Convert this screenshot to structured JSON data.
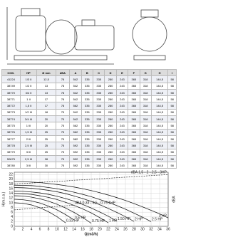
{
  "table": {
    "header": [
      "COD.",
      "HP",
      "Ø mm",
      "dBA",
      "A",
      "B",
      "C",
      "D",
      "E",
      "F",
      "G",
      "H",
      "I"
    ],
    "rows": [
      [
        "41224",
        "1/3 II",
        "12,5",
        "78",
        "542",
        "335",
        "335",
        "280",
        "243",
        "365",
        "318",
        "144,5",
        "58"
      ],
      [
        "38749",
        "1/2 II",
        "13",
        "78",
        "542",
        "335",
        "335",
        "280",
        "243",
        "365",
        "318",
        "144,5",
        "58"
      ],
      [
        "38770",
        "3/4 II",
        "13",
        "78",
        "542",
        "335",
        "335",
        "280",
        "243",
        "365",
        "318",
        "144,5",
        "58"
      ],
      [
        "38771",
        "1 II",
        "17",
        "78",
        "542",
        "335",
        "335",
        "280",
        "243",
        "365",
        "318",
        "144,5",
        "58"
      ],
      [
        "38772",
        "1,5 II",
        "17",
        "78",
        "562",
        "335",
        "335",
        "280",
        "243",
        "365",
        "318",
        "144,5",
        "58"
      ],
      [
        "38773",
        "1/2 III",
        "18",
        "75",
        "542",
        "335",
        "335",
        "280",
        "243",
        "365",
        "318",
        "144,5",
        "58"
      ],
      [
        "38774",
        "3/4 III",
        "20",
        "75",
        "542",
        "335",
        "335",
        "280",
        "243",
        "365",
        "318",
        "144,5",
        "58"
      ],
      [
        "38775",
        "1 III",
        "20",
        "75",
        "562",
        "335",
        "335",
        "280",
        "243",
        "365",
        "318",
        "144,5",
        "58"
      ],
      [
        "38776",
        "1,5 III",
        "25",
        "75",
        "562",
        "335",
        "335",
        "280",
        "243",
        "365",
        "318",
        "144,5",
        "58"
      ],
      [
        "38777",
        "2 III",
        "25",
        "75",
        "582",
        "335",
        "335",
        "280",
        "243",
        "365",
        "318",
        "144,5",
        "58"
      ],
      [
        "38778",
        "2,5 III",
        "25",
        "75",
        "592",
        "335",
        "335",
        "280",
        "243",
        "365",
        "318",
        "144,5",
        "58"
      ],
      [
        "38779",
        "3 III",
        "25",
        "75",
        "592",
        "335",
        "335",
        "280",
        "243",
        "365",
        "318",
        "144,5",
        "58"
      ],
      [
        "50675",
        "2,5 III",
        "28",
        "75",
        "592",
        "335",
        "335",
        "280",
        "243",
        "365",
        "318",
        "144,5",
        "58"
      ],
      [
        "38780",
        "3 III",
        "30",
        "75",
        "592",
        "335",
        "335",
        "280",
        "243",
        "365",
        "318",
        "144,5",
        "58"
      ]
    ]
  },
  "chart_data": {
    "type": "line",
    "x_label": "Q(m3/h)",
    "y_label": "H(m.c.a.)",
    "y2_label": "dBA",
    "x": [
      0,
      2,
      4,
      6,
      8,
      10,
      12,
      14,
      16,
      18,
      20,
      22,
      24,
      26,
      28,
      30,
      32,
      34,
      36
    ],
    "xlim": [
      0,
      36
    ],
    "xticks": [
      0,
      2,
      4,
      6,
      8,
      10,
      12,
      14,
      16,
      18,
      20,
      22,
      24,
      26,
      28,
      30,
      32,
      34,
      36
    ],
    "ylim": [
      0,
      23
    ],
    "yticks": [
      0,
      2,
      4,
      6,
      8,
      10,
      12,
      14,
      16,
      18,
      20,
      22
    ],
    "grid": true,
    "series": [
      {
        "name": "0.33 HP",
        "color": "#222",
        "values": [
          10,
          9.8,
          9.1,
          7.9,
          6.2,
          4.1,
          1.5,
          null,
          null,
          null,
          null,
          null,
          null,
          null,
          null,
          null,
          null,
          null,
          null
        ]
      },
      {
        "name": "0.5 HP",
        "color": "#222",
        "values": [
          11.5,
          11.3,
          10.8,
          9.9,
          8.6,
          7.0,
          5.0,
          2.7,
          null,
          null,
          null,
          null,
          null,
          null,
          null,
          null,
          null,
          null,
          null
        ]
      },
      {
        "name": "0.75 HP",
        "color": "#222",
        "values": [
          13,
          12.9,
          12.4,
          11.7,
          10.7,
          9.4,
          7.8,
          5.9,
          3.8,
          1.3,
          null,
          null,
          null,
          null,
          null,
          null,
          null,
          null,
          null
        ]
      },
      {
        "name": "1 HP",
        "color": "#222",
        "values": [
          14,
          13.9,
          13.6,
          13.0,
          12.3,
          11.4,
          10.2,
          8.9,
          7.4,
          5.7,
          3.7,
          1.5,
          null,
          null,
          null,
          null,
          null,
          null,
          null
        ]
      },
      {
        "name": "1.50 HP",
        "color": "#222",
        "values": [
          15,
          14.9,
          14.6,
          14.2,
          13.6,
          12.8,
          11.8,
          10.7,
          9.3,
          7.8,
          6.1,
          4.3,
          2.2,
          null,
          null,
          null,
          null,
          null,
          null
        ]
      },
      {
        "name": "2 HP",
        "color": "#222",
        "values": [
          16.5,
          16.4,
          16.2,
          15.8,
          15.3,
          14.7,
          13.9,
          12.9,
          11.8,
          10.6,
          9.2,
          7.6,
          5.9,
          4.1,
          2.1,
          null,
          null,
          null,
          null
        ]
      },
      {
        "name": "2.5 HP",
        "color": "#222",
        "values": [
          17.5,
          17.4,
          17.3,
          17.0,
          16.5,
          16.0,
          15.3,
          14.5,
          13.6,
          12.6,
          11.4,
          10.2,
          8.8,
          7.3,
          5.6,
          3.9,
          2.0,
          null,
          null
        ]
      },
      {
        "name": "3 HP",
        "color": "#222",
        "values": [
          19,
          19.0,
          18.8,
          18.6,
          18.2,
          17.8,
          17.3,
          16.7,
          16.0,
          15.2,
          14.3,
          13.3,
          12.2,
          11.0,
          9.7,
          8.3,
          6.8,
          5.3,
          3.6
        ]
      },
      {
        "name": "dBA 1,5 - 2 - 2,5 - 3HP",
        "color": "#444",
        "dashed": true,
        "values": [
          18,
          18.2,
          18.4,
          18.7,
          18.9,
          19.1,
          19.3,
          19.6,
          19.8,
          20,
          20.2,
          20.4,
          20.7,
          20.9,
          21.1,
          21.3,
          21.6,
          21.8,
          22
        ]
      },
      {
        "name": "dBA 0,33 - 0,5 - 0,75 1HP",
        "color": "#444",
        "dashed": true,
        "values": [
          7,
          7.3,
          7.6,
          7.9,
          8.2,
          8.5,
          8.7,
          9.0,
          null,
          null,
          null,
          null,
          null,
          null,
          null,
          null,
          null,
          null,
          null
        ]
      }
    ]
  }
}
